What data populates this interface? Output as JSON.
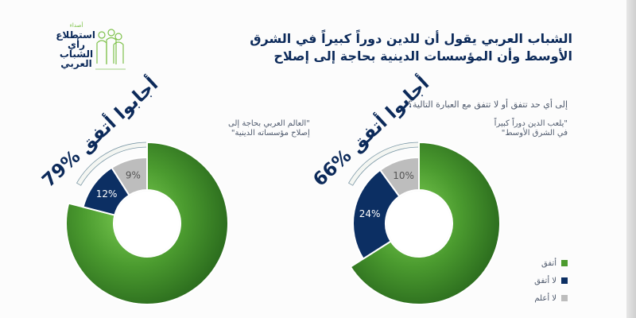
{
  "brand": {
    "tagline": "أصداء",
    "lines": [
      "استطلاع",
      "رأي الشباب",
      "العربي"
    ]
  },
  "title": {
    "line1": "الشباب العربي يقول أن للدين دوراً كبيراً في الشرق",
    "line2": "الأوسط وأن المؤسسات الدينية بحاجة إلى إصلاح"
  },
  "question": "إلى أي حد تتفق أو لا تتفق مع العبارة التالية؟",
  "colors": {
    "agree": "#4c9b2e",
    "disagree": "#0c2f63",
    "dontknow": "#bdbdbd",
    "ring": "#eef4ea"
  },
  "legend": {
    "agree": "أتفق",
    "disagree": "لا أتفق",
    "dontknow": "لا أعلم"
  },
  "chart_data": [
    {
      "type": "pie",
      "title": "66% أجابوا أتفق",
      "statement_line1": "\"يلعب الدين دوراً كبيراً",
      "statement_line2": "في الشرق الأوسط\"",
      "categories": [
        "أتفق",
        "لا أتفق",
        "لا أعلم"
      ],
      "values": [
        66,
        24,
        10
      ],
      "data_labels": [
        "",
        "24%",
        "10%"
      ]
    },
    {
      "type": "pie",
      "title": "79% أجابوا أتفق",
      "statement_line1": "\"العالم العربي بحاجة إلى",
      "statement_line2": "إصلاح مؤسساته الدينية\"",
      "categories": [
        "أتفق",
        "لا أتفق",
        "لا أعلم"
      ],
      "values": [
        79,
        12,
        9
      ],
      "data_labels": [
        "",
        "12%",
        "9%"
      ]
    }
  ]
}
